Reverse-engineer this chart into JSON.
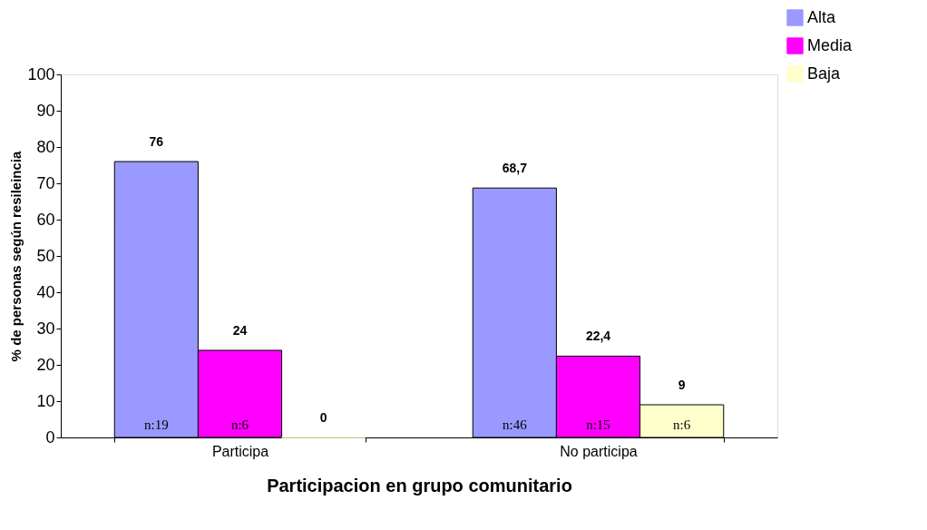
{
  "chart_data": {
    "type": "bar",
    "xlabel": "Participacion en grupo comunitario",
    "ylabel": "% de personas según resileincia",
    "categories": [
      "Participa",
      "No participa"
    ],
    "series": [
      {
        "name": "Alta",
        "color": "#9999ff",
        "values": [
          76,
          68.7
        ],
        "value_labels": [
          "76",
          "68,7"
        ]
      },
      {
        "name": "Media",
        "color": "#ff00ff",
        "values": [
          24,
          22.4
        ],
        "value_labels": [
          "24",
          "22,4"
        ]
      },
      {
        "name": "Baja",
        "color": "#ffffcc",
        "values": [
          0,
          9
        ],
        "value_labels": [
          "0",
          "9"
        ]
      }
    ],
    "annotations": [
      "n:19",
      "n:6",
      "n:46",
      "n:15",
      "n:6"
    ],
    "ylim": [
      0,
      100
    ],
    "yticks": [
      0,
      10,
      20,
      30,
      40,
      50,
      60,
      70,
      80,
      90,
      100
    ],
    "grid": false,
    "legend": "top right"
  }
}
